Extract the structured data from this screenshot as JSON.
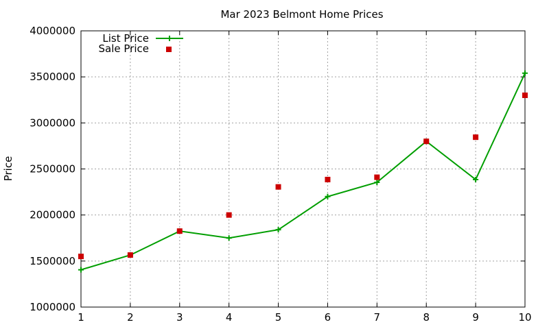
{
  "chart_data": {
    "type": "line",
    "title": "Mar 2023 Belmont Home Prices",
    "xlabel": "",
    "ylabel": "Price",
    "x": [
      1,
      2,
      3,
      4,
      5,
      6,
      7,
      8,
      9,
      10
    ],
    "xlim": [
      1,
      10
    ],
    "ylim": [
      1000000,
      4000000
    ],
    "xticks": [
      "1",
      "2",
      "3",
      "4",
      "5",
      "6",
      "7",
      "8",
      "9",
      "10"
    ],
    "yticks": [
      "1000000",
      "1500000",
      "2000000",
      "2500000",
      "3000000",
      "3500000",
      "4000000"
    ],
    "grid": true,
    "legend_position": "top-left",
    "series": [
      {
        "name": "List Price",
        "style": "line-with-plus-markers",
        "color": "#009e00",
        "values": [
          1405000,
          1565000,
          1825000,
          1750000,
          1840000,
          2200000,
          2355000,
          2800000,
          2385000,
          3540000
        ]
      },
      {
        "name": "Sale Price",
        "style": "square-points",
        "color": "#cc0000",
        "values": [
          1550000,
          1565000,
          1825000,
          2000000,
          2305000,
          2385000,
          2410000,
          2800000,
          2845000,
          3300000
        ]
      }
    ]
  }
}
